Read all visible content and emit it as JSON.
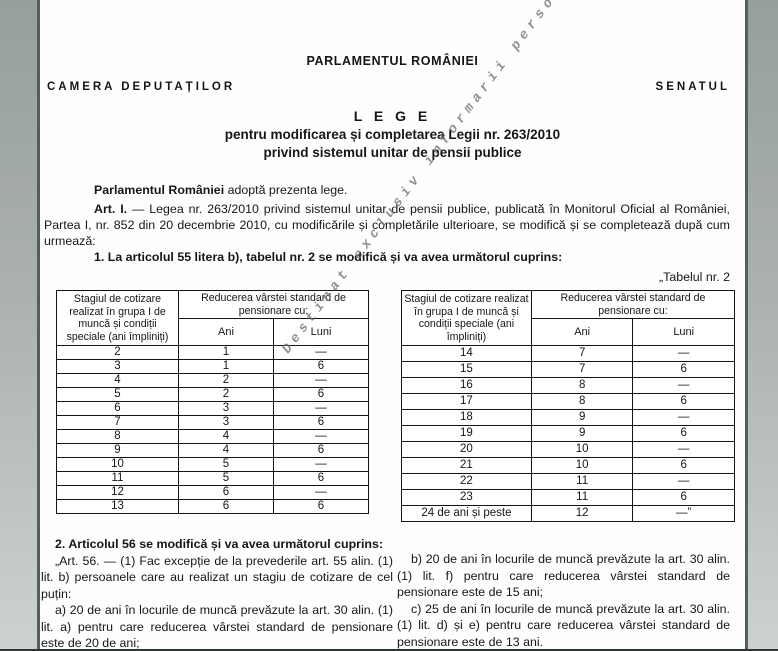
{
  "page": {
    "parliament": "PARLAMENTUL ROMÂNIEI",
    "chamber_left": "CAMERA DEPUTAȚILOR",
    "chamber_right": "SENATUL",
    "law_title": "L E G E",
    "law_subtitle1": "pentru modificarea și completarea Legii nr. 263/2010",
    "law_subtitle2": "privind sistemul unitar de pensii publice",
    "adoption": {
      "lead": "Parlamentul României",
      "rest": " adoptă prezenta lege."
    },
    "art1": {
      "lead": "Art. I.",
      "rest": " — Legea nr. 263/2010 privind sistemul unitar de pensii publice, publicată în Monitorul Oficial al României, Partea I, nr. 852 din 20 decembrie 2010, cu modificările și completările ulterioare, se modifică și se completează după cum urmează:"
    },
    "item1": "1. La articolul 55 litera b), tabelul nr. 2 se modifică și va avea următorul cuprins:",
    "table_label": "„Tabelul nr. 2",
    "watermark": "Destinat exclusiv informarii personale"
  },
  "tables": {
    "header_col1": "Stagiul de cotizare realizat în grupa I de muncă și condiții speciale (ani împliniți)",
    "header_group": "Reducerea vârstei standard de pensionare cu:",
    "header_ani": "Ani",
    "header_luni": "Luni",
    "left_rows": [
      [
        "2",
        "1",
        "—"
      ],
      [
        "3",
        "1",
        "6"
      ],
      [
        "4",
        "2",
        "—"
      ],
      [
        "5",
        "2",
        "6"
      ],
      [
        "6",
        "3",
        "—"
      ],
      [
        "7",
        "3",
        "6"
      ],
      [
        "8",
        "4",
        "—"
      ],
      [
        "9",
        "4",
        "6"
      ],
      [
        "10",
        "5",
        "—"
      ],
      [
        "11",
        "5",
        "6"
      ],
      [
        "12",
        "6",
        "—"
      ],
      [
        "13",
        "6",
        "6"
      ]
    ],
    "right_rows": [
      [
        "14",
        "7",
        "—"
      ],
      [
        "15",
        "7",
        "6"
      ],
      [
        "16",
        "8",
        "—"
      ],
      [
        "17",
        "8",
        "6"
      ],
      [
        "18",
        "9",
        "—"
      ],
      [
        "19",
        "9",
        "6"
      ],
      [
        "20",
        "10",
        "—"
      ],
      [
        "21",
        "10",
        "6"
      ],
      [
        "22",
        "11",
        "—"
      ],
      [
        "23",
        "11",
        "6"
      ],
      [
        "24 de ani și peste",
        "12",
        "—”"
      ]
    ]
  },
  "bottom": {
    "left": [
      {
        "bold": true,
        "text": "2. Articolul 56 se modifică și va avea următorul cuprins:"
      },
      {
        "bold": false,
        "text": "„Art. 56. — (1) Fac excepție de la prevederile art. 55 alin. (1) lit. b) persoanele care au realizat un stagiu de cotizare de cel puțin:"
      },
      {
        "bold": false,
        "text": "a) 20 de ani în locurile de muncă prevăzute la art. 30 alin. (1) lit. a) pentru care reducerea vârstei standard de pensionare este de 20 de ani;"
      }
    ],
    "right": [
      {
        "bold": false,
        "text": "b) 20 de ani în locurile de muncă prevăzute la art. 30 alin. (1) lit. f) pentru care reducerea vârstei standard de pensionare este de 15 ani;"
      },
      {
        "bold": false,
        "text": "c) 25 de ani în locurile de muncă prevăzute la art. 30 alin. (1) lit. d) și e) pentru care reducerea vârstei standard de pensionare este de 13 ani."
      }
    ]
  }
}
